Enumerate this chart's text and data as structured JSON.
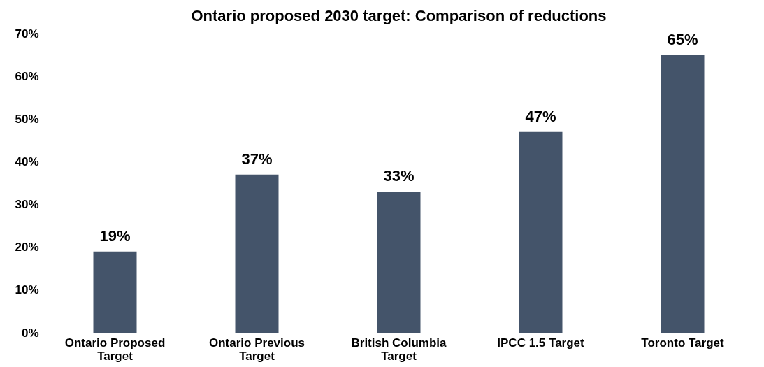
{
  "chart_data": {
    "type": "bar",
    "title": "Ontario proposed 2030 target: Comparison of reductions",
    "categories": [
      "Ontario Proposed Target",
      "Ontario Previous Target",
      "British Columbia Target",
      "IPCC 1.5 Target",
      "Toronto Target"
    ],
    "values": [
      19,
      37,
      33,
      47,
      65
    ],
    "color": "#44546a",
    "value_labels": [
      "19%",
      "37%",
      "33%",
      "47%",
      "65%"
    ],
    "ylim": [
      0,
      70
    ],
    "yticks": [
      {
        "value": 0,
        "label": "0%"
      },
      {
        "value": 10,
        "label": "10%"
      },
      {
        "value": 20,
        "label": "20%"
      },
      {
        "value": 30,
        "label": "30%"
      },
      {
        "value": 40,
        "label": "40%"
      },
      {
        "value": 50,
        "label": "50%"
      },
      {
        "value": 60,
        "label": "60%"
      },
      {
        "value": 70,
        "label": "70%"
      }
    ],
    "grid": false
  }
}
